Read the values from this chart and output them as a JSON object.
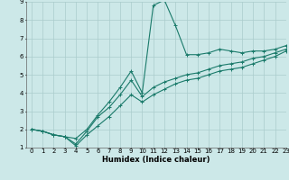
{
  "title": "",
  "xlabel": "Humidex (Indice chaleur)",
  "ylabel": "",
  "xlim": [
    -0.5,
    23
  ],
  "ylim": [
    1,
    9
  ],
  "xticks": [
    0,
    1,
    2,
    3,
    4,
    5,
    6,
    7,
    8,
    9,
    10,
    11,
    12,
    13,
    14,
    15,
    16,
    17,
    18,
    19,
    20,
    21,
    22,
    23
  ],
  "yticks": [
    1,
    2,
    3,
    4,
    5,
    6,
    7,
    8,
    9
  ],
  "background_color": "#cce8e8",
  "grid_color": "#aacccc",
  "line_color": "#1a7a6a",
  "series": [
    {
      "x": [
        0,
        1,
        2,
        3,
        4,
        5,
        6,
        7,
        8,
        9,
        10,
        11,
        12,
        13,
        14,
        15,
        16,
        17,
        18,
        19,
        20,
        21,
        22,
        23
      ],
      "y": [
        2.0,
        1.9,
        1.7,
        1.6,
        1.5,
        2.0,
        2.8,
        3.5,
        4.3,
        5.2,
        4.0,
        8.8,
        9.1,
        7.7,
        6.1,
        6.1,
        6.2,
        6.4,
        6.3,
        6.2,
        6.3,
        6.3,
        6.4,
        6.6
      ]
    },
    {
      "x": [
        0,
        1,
        2,
        3,
        4,
        5,
        6,
        7,
        8,
        9,
        10,
        11,
        12,
        13,
        14,
        15,
        16,
        17,
        18,
        19,
        20,
        21,
        22,
        23
      ],
      "y": [
        2.0,
        1.9,
        1.7,
        1.6,
        1.2,
        1.9,
        2.7,
        3.2,
        3.9,
        4.7,
        3.8,
        4.3,
        4.6,
        4.8,
        5.0,
        5.1,
        5.3,
        5.5,
        5.6,
        5.7,
        5.9,
        6.0,
        6.2,
        6.4
      ]
    },
    {
      "x": [
        0,
        1,
        2,
        3,
        4,
        5,
        6,
        7,
        8,
        9,
        10,
        11,
        12,
        13,
        14,
        15,
        16,
        17,
        18,
        19,
        20,
        21,
        22,
        23
      ],
      "y": [
        2.0,
        1.9,
        1.7,
        1.6,
        1.1,
        1.7,
        2.2,
        2.7,
        3.3,
        3.9,
        3.5,
        3.9,
        4.2,
        4.5,
        4.7,
        4.8,
        5.0,
        5.2,
        5.3,
        5.4,
        5.6,
        5.8,
        6.0,
        6.3
      ]
    }
  ],
  "marker": "+",
  "marker_size": 3,
  "line_width": 0.8,
  "tick_fontsize": 5,
  "xlabel_fontsize": 6,
  "xlabel_fontweight": "bold"
}
